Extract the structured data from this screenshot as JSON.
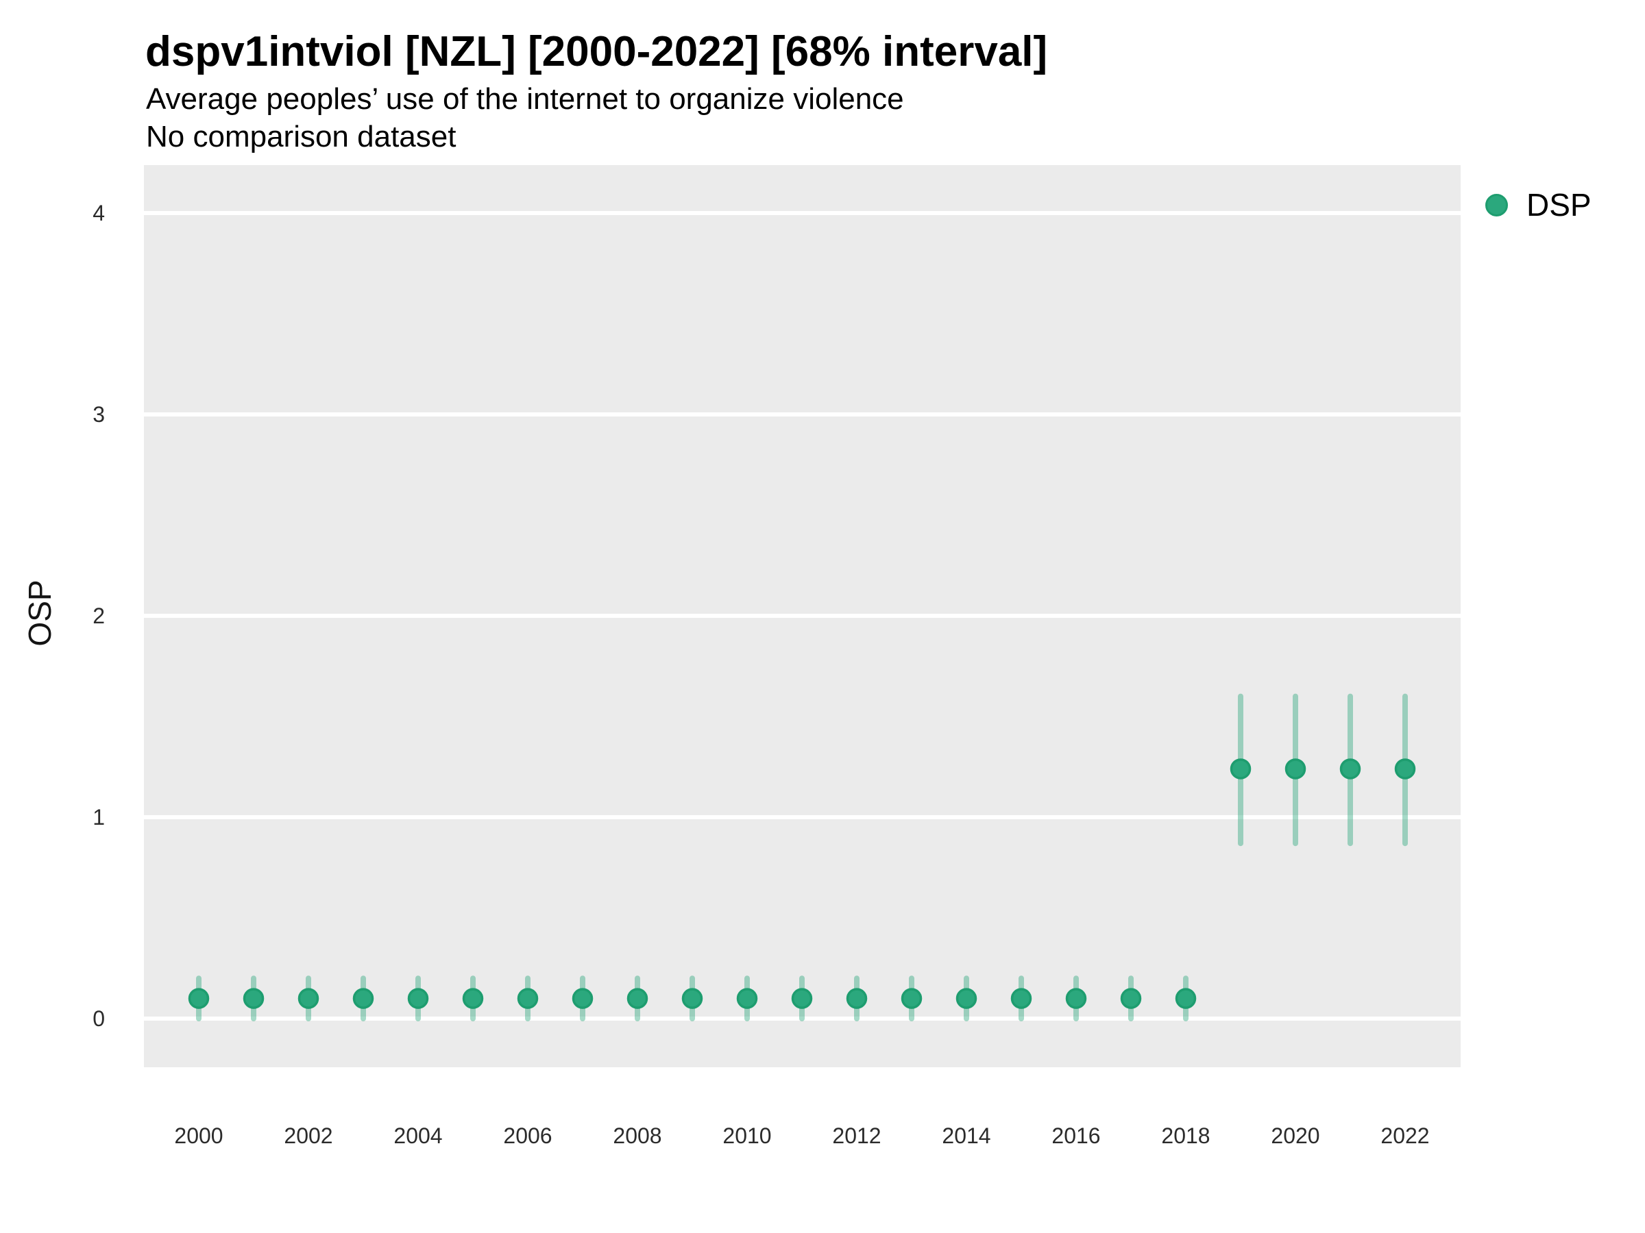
{
  "header": {
    "title": "dspv1intviol [NZL] [2000-2022] [68% interval]",
    "subtitle": "Average peoples’ use of the internet to organize violence",
    "note": "No comparison dataset"
  },
  "legend": {
    "items": [
      {
        "label": "DSP",
        "color": "#2BA87D",
        "stroke": "#1E9D6F"
      }
    ]
  },
  "style": {
    "panel_bg": "#EBEBEB",
    "grid_color": "#FFFFFF",
    "tick_label_color": "#2B2B2B",
    "point_color": "#2BA87D",
    "point_stroke": "#1E9D6F",
    "interval_color": "rgba(43,168,125,0.42)"
  },
  "chart_data": {
    "type": "scatter",
    "title": "dspv1intviol [NZL] [2000-2022] [68% interval]",
    "subtitle": "Average peoples’ use of the internet to organize violence",
    "note": "No comparison dataset",
    "xlabel": "",
    "ylabel": "OSP",
    "interval": "68%",
    "ylim": [
      -0.24,
      4.24
    ],
    "yticks": [
      0,
      1,
      2,
      3,
      4
    ],
    "xticks": [
      2000,
      2002,
      2004,
      2006,
      2008,
      2010,
      2012,
      2014,
      2016,
      2018,
      2020,
      2022
    ],
    "grid": "horizontal-major-only",
    "legend_position": "right-top",
    "series": [
      {
        "name": "DSP",
        "points": [
          {
            "year": 2000,
            "est": 0.1,
            "lo": 0.0,
            "hi": 0.2
          },
          {
            "year": 2001,
            "est": 0.1,
            "lo": 0.0,
            "hi": 0.2
          },
          {
            "year": 2002,
            "est": 0.1,
            "lo": 0.0,
            "hi": 0.2
          },
          {
            "year": 2003,
            "est": 0.1,
            "lo": 0.0,
            "hi": 0.2
          },
          {
            "year": 2004,
            "est": 0.1,
            "lo": 0.0,
            "hi": 0.2
          },
          {
            "year": 2005,
            "est": 0.1,
            "lo": 0.0,
            "hi": 0.2
          },
          {
            "year": 2006,
            "est": 0.1,
            "lo": 0.0,
            "hi": 0.2
          },
          {
            "year": 2007,
            "est": 0.1,
            "lo": 0.0,
            "hi": 0.2
          },
          {
            "year": 2008,
            "est": 0.1,
            "lo": 0.0,
            "hi": 0.2
          },
          {
            "year": 2009,
            "est": 0.1,
            "lo": 0.0,
            "hi": 0.2
          },
          {
            "year": 2010,
            "est": 0.1,
            "lo": 0.0,
            "hi": 0.2
          },
          {
            "year": 2011,
            "est": 0.1,
            "lo": 0.0,
            "hi": 0.2
          },
          {
            "year": 2012,
            "est": 0.1,
            "lo": 0.0,
            "hi": 0.2
          },
          {
            "year": 2013,
            "est": 0.1,
            "lo": 0.0,
            "hi": 0.2
          },
          {
            "year": 2014,
            "est": 0.1,
            "lo": 0.0,
            "hi": 0.2
          },
          {
            "year": 2015,
            "est": 0.1,
            "lo": 0.0,
            "hi": 0.2
          },
          {
            "year": 2016,
            "est": 0.1,
            "lo": 0.0,
            "hi": 0.2
          },
          {
            "year": 2017,
            "est": 0.1,
            "lo": 0.0,
            "hi": 0.2
          },
          {
            "year": 2018,
            "est": 0.1,
            "lo": 0.0,
            "hi": 0.2
          },
          {
            "year": 2019,
            "est": 1.24,
            "lo": 0.87,
            "hi": 1.6
          },
          {
            "year": 2020,
            "est": 1.24,
            "lo": 0.87,
            "hi": 1.6
          },
          {
            "year": 2021,
            "est": 1.24,
            "lo": 0.87,
            "hi": 1.6
          },
          {
            "year": 2022,
            "est": 1.24,
            "lo": 0.87,
            "hi": 1.6
          }
        ]
      }
    ]
  }
}
